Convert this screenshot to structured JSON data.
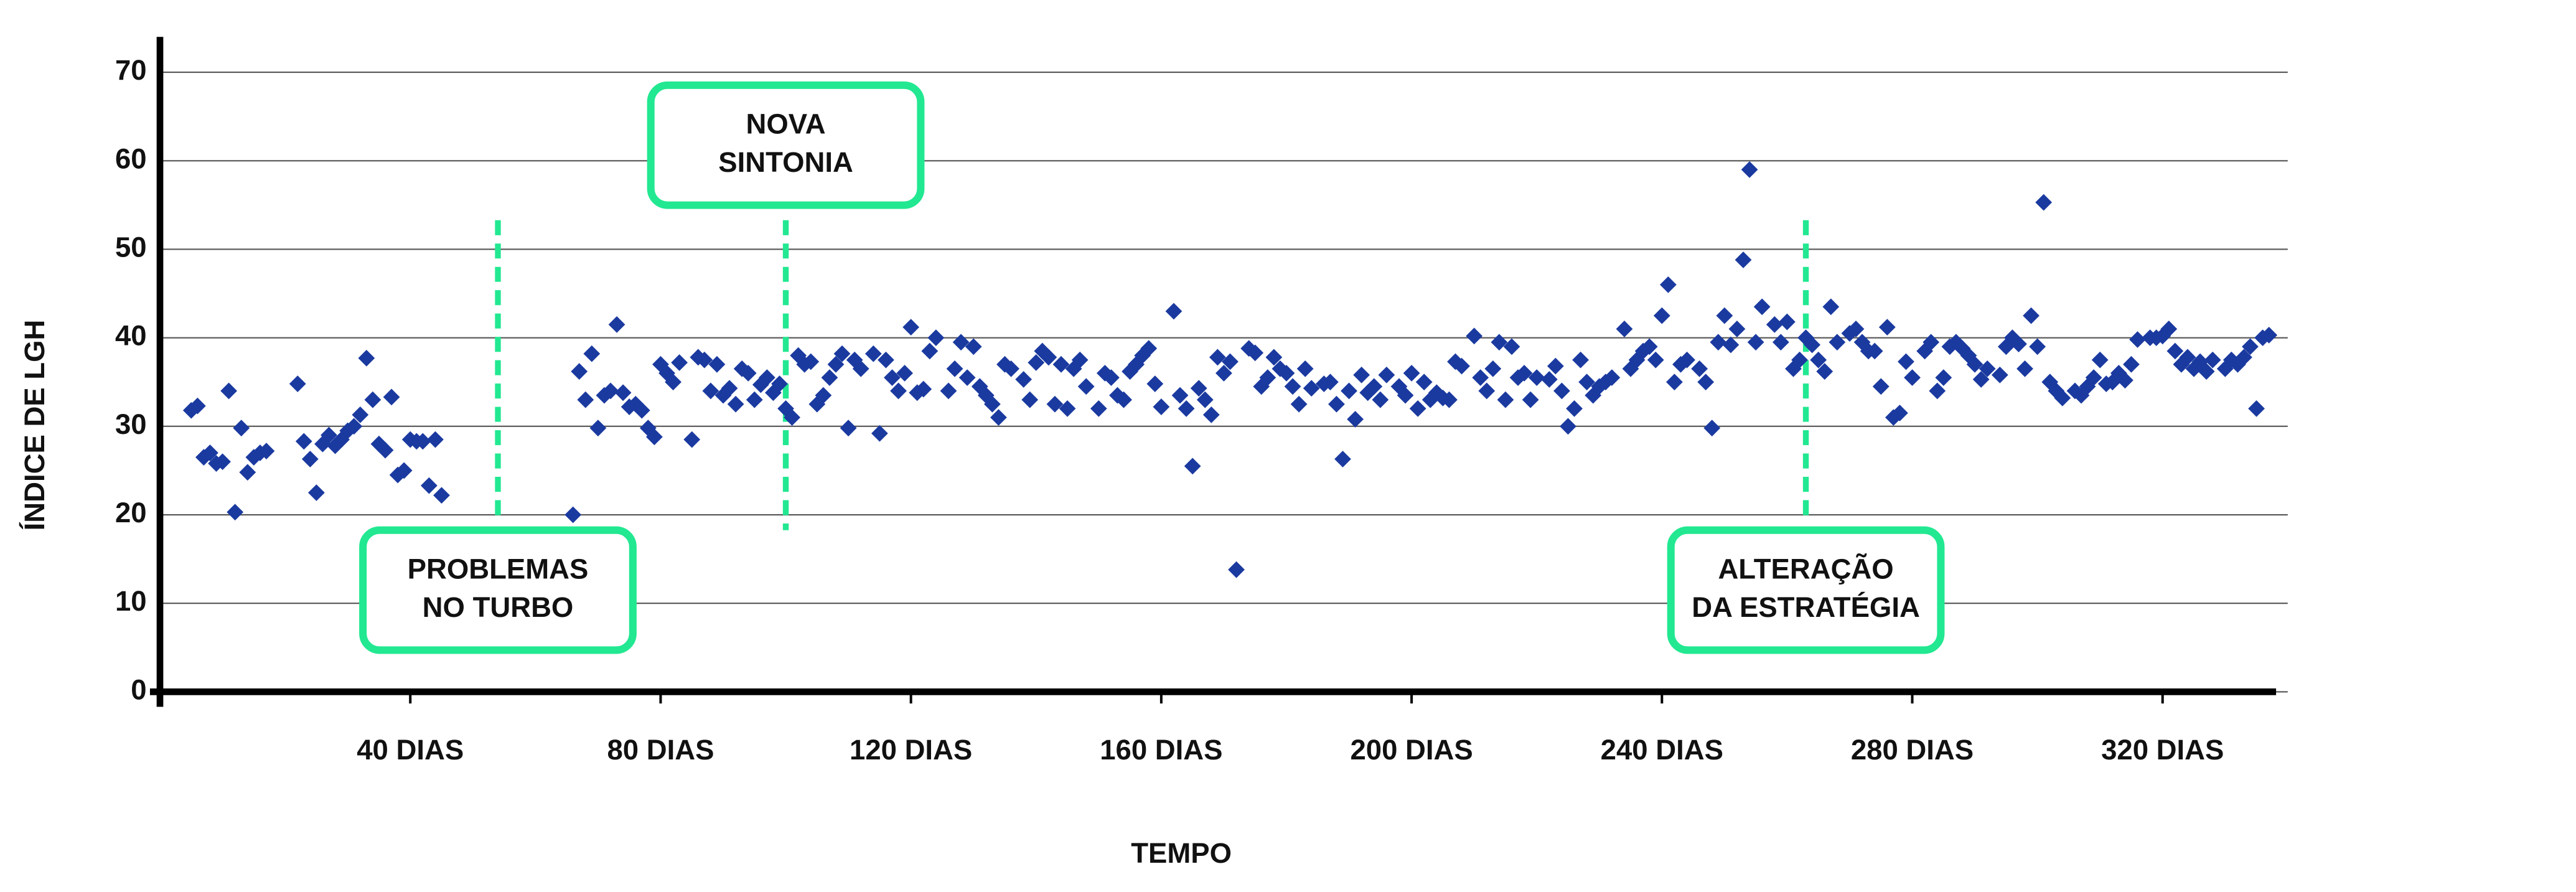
{
  "chart_data": {
    "type": "scatter",
    "x_label": "TEMPO",
    "y_label": "ÍNDICE DE LGH",
    "color": "#1b3aa0",
    "xlim": [
      0,
      340
    ],
    "ylim": [
      0,
      74
    ],
    "xticks": [
      {
        "value": 40,
        "label": "40 DIAS"
      },
      {
        "value": 80,
        "label": "80 DIAS"
      },
      {
        "value": 120,
        "label": "120 DIAS"
      },
      {
        "value": 160,
        "label": "160 DIAS"
      },
      {
        "value": 200,
        "label": "200 DIAS"
      },
      {
        "value": 240,
        "label": "240 DIAS"
      },
      {
        "value": 280,
        "label": "280 DIAS"
      },
      {
        "value": 320,
        "label": "320 DIAS"
      }
    ],
    "yticks": [
      0,
      10,
      20,
      30,
      40,
      50,
      60,
      70
    ],
    "grid": true,
    "annotations": [
      {
        "x": 54,
        "text": [
          "PROBLEMAS",
          "NO TURBO"
        ],
        "position": "bottom",
        "color": "#22e891"
      },
      {
        "x": 100,
        "text": [
          "NOVA",
          "SINTONIA"
        ],
        "position": "top",
        "color": "#22e891"
      },
      {
        "x": 263,
        "text": [
          "ALTERAÇÃO",
          "DA ESTRATÉGIA"
        ],
        "position": "bottom",
        "color": "#22e891"
      }
    ],
    "x": [
      5,
      6,
      7,
      8,
      9,
      10,
      11,
      12,
      13,
      14,
      15,
      16,
      17,
      22,
      23,
      24,
      25,
      26,
      27,
      28,
      29,
      30,
      31,
      32,
      33,
      34,
      35,
      36,
      37,
      38,
      39,
      40,
      41,
      42,
      43,
      44,
      45,
      66,
      67,
      68,
      69,
      70,
      71,
      72,
      73,
      74,
      75,
      76,
      77,
      78,
      79,
      80,
      81,
      82,
      83,
      85,
      86,
      87,
      88,
      89,
      90,
      91,
      92,
      93,
      94,
      95,
      96,
      97,
      98,
      99,
      100,
      101,
      102,
      103,
      104,
      105,
      106,
      107,
      108,
      109,
      110,
      111,
      112,
      114,
      115,
      116,
      117,
      118,
      119,
      120,
      121,
      122,
      123,
      124,
      126,
      127,
      128,
      129,
      130,
      131,
      132,
      133,
      134,
      135,
      136,
      138,
      139,
      140,
      141,
      142,
      143,
      144,
      145,
      146,
      147,
      148,
      150,
      151,
      152,
      153,
      154,
      155,
      156,
      157,
      158,
      159,
      160,
      162,
      163,
      164,
      165,
      166,
      167,
      168,
      169,
      170,
      171,
      172,
      174,
      175,
      176,
      177,
      178,
      179,
      180,
      181,
      182,
      183,
      184,
      186,
      187,
      188,
      189,
      190,
      191,
      192,
      193,
      194,
      195,
      196,
      198,
      199,
      200,
      201,
      202,
      203,
      204,
      205,
      206,
      207,
      208,
      210,
      211,
      212,
      213,
      214,
      215,
      216,
      217,
      218,
      219,
      220,
      222,
      223,
      224,
      225,
      226,
      227,
      228,
      229,
      230,
      231,
      232,
      234,
      235,
      236,
      237,
      238,
      239,
      240,
      241,
      242,
      243,
      244,
      246,
      247,
      248,
      249,
      250,
      251,
      252,
      253,
      254,
      255,
      256,
      258,
      259,
      260,
      261,
      262,
      263,
      264,
      265,
      266,
      267,
      268,
      270,
      271,
      272,
      273,
      274,
      275,
      276,
      277,
      278,
      279,
      280,
      282,
      283,
      284,
      285,
      286,
      287,
      288,
      289,
      290,
      291,
      292,
      294,
      295,
      296,
      297,
      298,
      299,
      300,
      301,
      302,
      303,
      304,
      306,
      307,
      308,
      309,
      310,
      311,
      312,
      313,
      314,
      315,
      316,
      318,
      319,
      320,
      321,
      322,
      323,
      324,
      325,
      326,
      327,
      328,
      330,
      331,
      332,
      333,
      334,
      335,
      336,
      337
    ],
    "values": [
      31.8,
      32.3,
      26.5,
      27,
      25.8,
      26,
      34,
      20.3,
      29.8,
      24.8,
      26.5,
      27,
      27.2,
      34.8,
      28.3,
      26.3,
      22.5,
      28,
      29,
      27.8,
      28.5,
      29.5,
      30,
      31.3,
      37.7,
      33,
      28,
      27.3,
      33.3,
      24.5,
      25,
      28.5,
      28.3,
      28.3,
      23.3,
      28.5,
      22.2,
      20,
      36.2,
      33,
      38.2,
      29.8,
      33.5,
      34,
      41.5,
      33.8,
      32.2,
      32.5,
      31.8,
      29.8,
      28.8,
      37,
      36,
      35,
      37.2,
      28.5,
      37.8,
      37.5,
      34,
      37,
      33.5,
      34.3,
      32.5,
      36.5,
      36,
      33,
      34.7,
      35.5,
      33.8,
      34.8,
      32,
      31,
      38,
      37,
      37.3,
      32.5,
      33.5,
      35.5,
      37,
      38.2,
      29.8,
      37.5,
      36.5,
      38.2,
      29.2,
      37.5,
      35.5,
      34,
      36,
      41.2,
      33.8,
      34.2,
      38.5,
      40,
      34,
      36.5,
      39.5,
      35.5,
      39,
      34.5,
      33.5,
      32.5,
      31,
      37,
      36.5,
      35.3,
      33,
      37.2,
      38.5,
      37.8,
      32.5,
      37,
      32,
      36.5,
      37.5,
      34.5,
      32,
      36,
      35.5,
      33.5,
      33,
      36.2,
      37,
      38,
      38.8,
      34.8,
      32.2,
      43,
      33.5,
      32,
      25.5,
      34.3,
      33,
      31.3,
      37.8,
      36,
      37.3,
      13.8,
      38.8,
      38.3,
      34.5,
      35.5,
      37.8,
      36.5,
      36,
      34.5,
      32.5,
      36.5,
      34.3,
      34.8,
      35,
      32.5,
      26.3,
      34,
      30.8,
      35.8,
      33.8,
      34.5,
      33,
      35.8,
      34.5,
      33.5,
      36,
      32,
      35,
      33,
      33.8,
      33.2,
      33,
      37.3,
      36.8,
      40.2,
      35.5,
      34,
      36.5,
      39.5,
      33,
      39,
      35.5,
      36,
      33,
      35.5,
      35.3,
      36.8,
      34,
      30,
      32,
      37.5,
      35,
      33.5,
      34.5,
      35,
      35.5,
      41,
      36.5,
      37.5,
      38.5,
      39,
      37.5,
      42.5,
      46,
      35,
      37,
      37.5,
      36.5,
      35,
      29.8,
      39.5,
      42.5,
      39.2,
      41,
      48.8,
      59,
      39.5,
      43.5,
      41.5,
      39.5,
      41.8,
      36.5,
      37.5,
      40,
      39.2,
      37.5,
      36.2,
      43.5,
      39.5,
      40.5,
      41,
      39.5,
      38.5,
      38.5,
      34.5,
      41.2,
      31,
      31.5,
      37.3,
      35.5,
      38.5,
      39.5,
      34,
      35.5,
      39,
      39.5,
      38.8,
      38,
      37,
      35.3,
      36.5,
      35.8,
      39,
      40,
      39.3,
      36.5,
      42.5,
      39,
      55.3,
      35,
      34,
      33.2,
      34,
      33.5,
      34.5,
      35.5,
      37.5,
      34.8,
      35,
      36,
      35.2,
      37,
      39.8,
      40,
      40,
      40.2,
      41,
      38.5,
      37,
      37.8,
      36.5,
      37.3,
      36.2,
      37.5,
      36.5,
      37.5,
      37,
      37.8,
      39,
      32,
      40,
      40.3
    ]
  }
}
